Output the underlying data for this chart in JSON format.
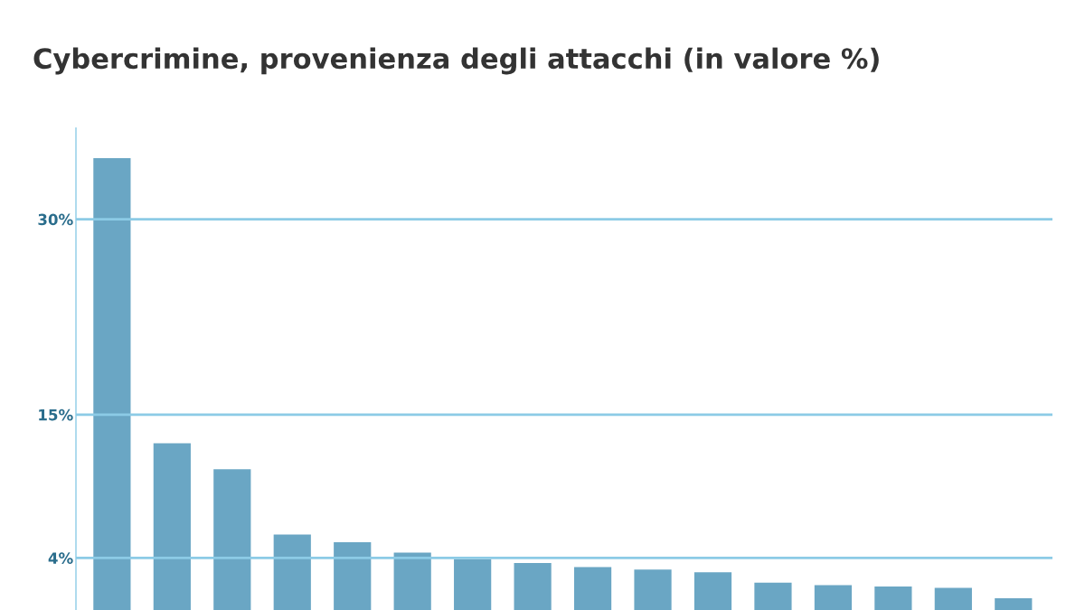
{
  "chart_data": {
    "type": "bar",
    "title": "Cybercrimine, provenienza degli attacchi (in valore %)",
    "categories": [
      null,
      null,
      null,
      null,
      null,
      null,
      null,
      null,
      null,
      null,
      null,
      null,
      null,
      null,
      null,
      null
    ],
    "values": [
      34.7,
      12.8,
      10.8,
      5.8,
      5.2,
      4.4,
      3.9,
      3.6,
      3.3,
      3.1,
      2.9,
      2.1,
      1.9,
      1.8,
      1.7,
      0.9
    ],
    "color": "#6aa6c4",
    "ylim": [
      0,
      37
    ],
    "yticks": [
      {
        "value": 4,
        "label": "4%"
      },
      {
        "value": 15,
        "label": "15%"
      },
      {
        "value": 30,
        "label": "30%"
      }
    ],
    "grid": "y"
  }
}
